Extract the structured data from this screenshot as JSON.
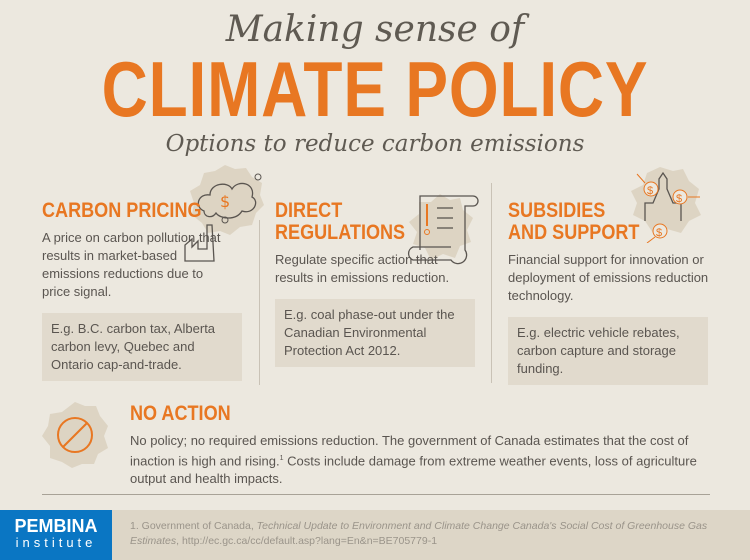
{
  "header": {
    "pre_title": "Making sense of",
    "title": "CLIMATE POLICY",
    "subtitle": "Options to reduce carbon emissions"
  },
  "sections": [
    {
      "heading": "CARBON PRICING",
      "description": "A price on carbon pollution that results in market-based emissions reductions due to price signal.",
      "example": "E.g. B.C. carbon tax, Alberta carbon levy, Quebec and Ontario cap-and-trade.",
      "icon": "factory-cloud-dollar-icon"
    },
    {
      "heading_line1": "DIRECT",
      "heading_line2": "REGULATIONS",
      "description": "Regulate specific action that results in emissions reduction.",
      "example": "E.g. coal phase-out under the Canadian Environmental Protection Act 2012.",
      "icon": "scroll-alert-icon"
    },
    {
      "heading_line1": "SUBSIDIES",
      "heading_line2": "AND SUPPORT",
      "description": "Financial support for innovation or deployment of emissions reduction technology.",
      "example": "E.g. electric vehicle rebates, carbon capture and storage funding.",
      "icon": "parliament-dollar-icon"
    }
  ],
  "no_action": {
    "heading": "NO ACTION",
    "text_before": "No policy; no required emissions reduction. The government of Canada estimates that the cost of inaction is high and rising.",
    "footnote_mark": "1",
    "text_after": " Costs include damage from extreme weather events, loss of agriculture output and health impacts.",
    "icon": "prohibited-icon"
  },
  "footer": {
    "logo_line1": "PEMBINA",
    "logo_line2": "institute",
    "footnote_prefix": "1. Government of Canada, ",
    "footnote_title": "Technical Update to Environment and Climate Change Canada's Social Cost of Greenhouse Gas Estimates",
    "footnote_suffix": ", http://ec.gc.ca/cc/default.asp?lang=En&n=BE705779-1"
  },
  "colors": {
    "accent": "#e87722",
    "background": "#ece8df",
    "brand_blue": "#0a76c3"
  }
}
